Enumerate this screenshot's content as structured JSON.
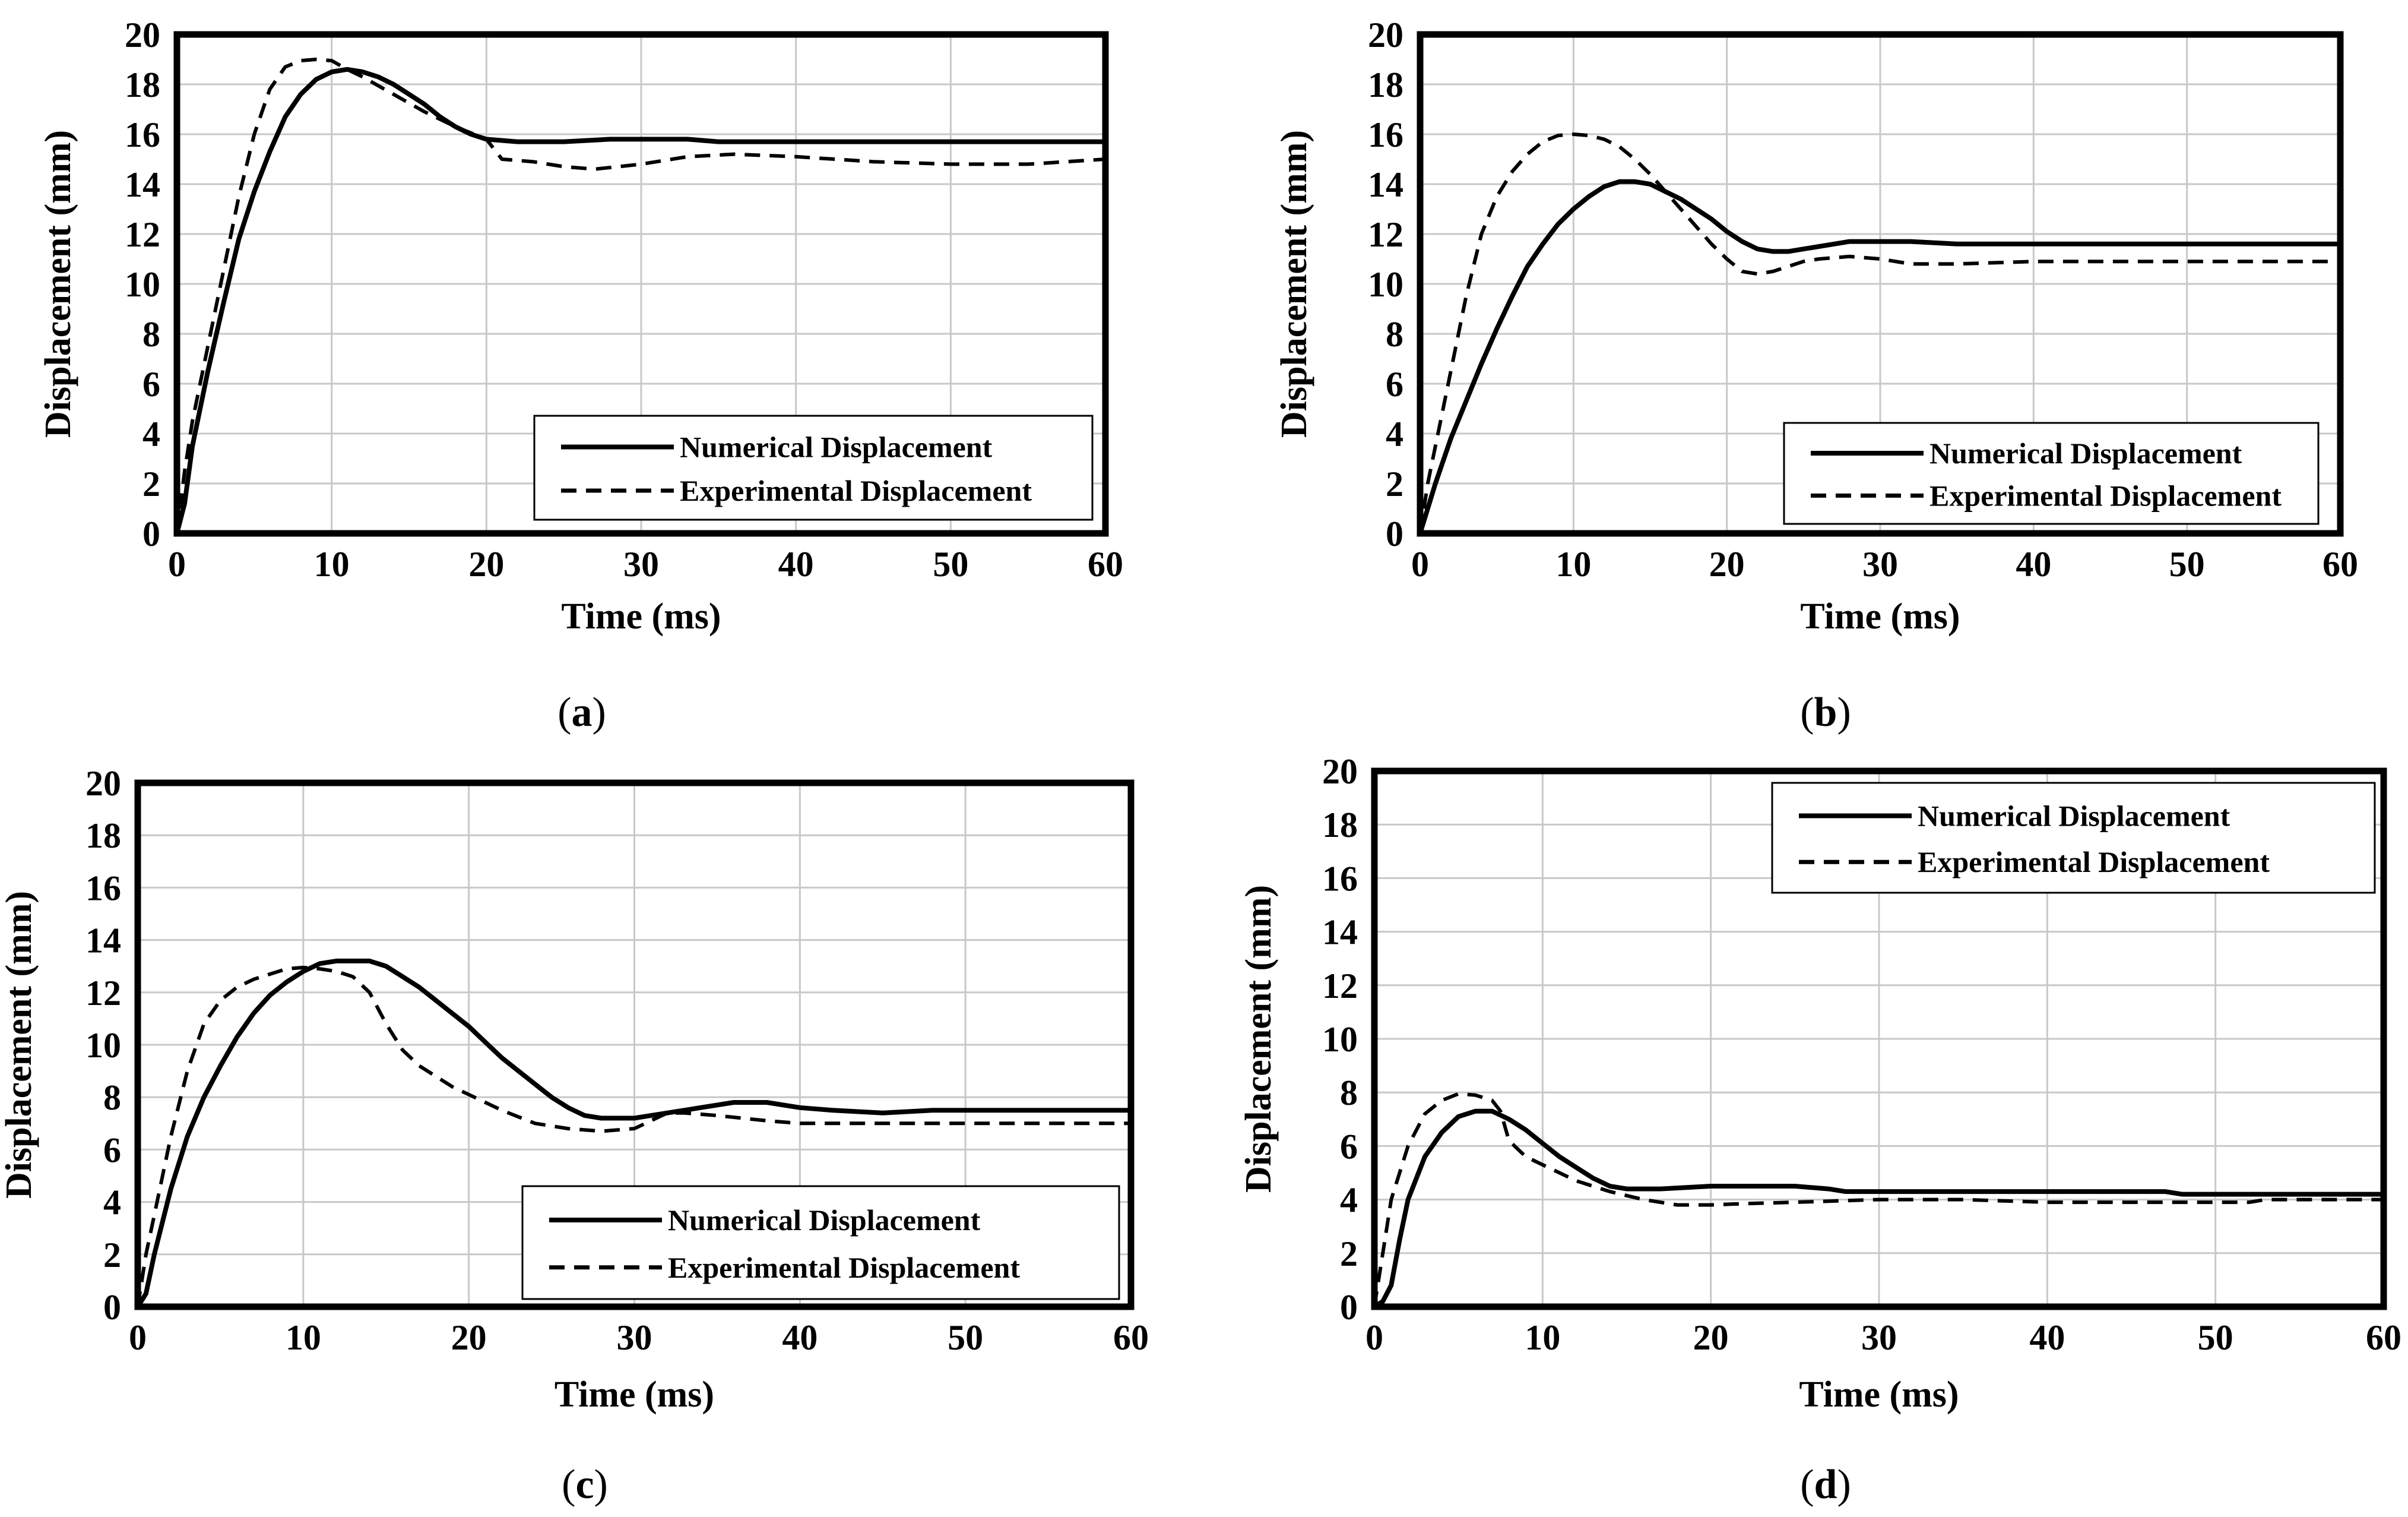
{
  "chart_data": [
    {
      "type": "line",
      "panel": "(a)",
      "caption_letter": "a",
      "xlabel": "Time (ms)",
      "ylabel": "Displacement (mm)",
      "xlim": [
        0,
        60
      ],
      "ylim": [
        0,
        20
      ],
      "xticks": [
        0,
        10,
        20,
        30,
        40,
        50,
        60
      ],
      "yticks": [
        0,
        2,
        4,
        6,
        8,
        10,
        12,
        14,
        16,
        18,
        20
      ],
      "grid": true,
      "legend_position": "bottom-right",
      "series": [
        {
          "name": "Numerical Displacement",
          "style": "solid",
          "x": [
            0,
            0.5,
            1,
            2,
            3,
            4,
            5,
            6,
            7,
            8,
            9,
            10,
            11,
            12,
            13,
            14,
            15,
            16,
            17,
            18,
            19,
            20,
            22,
            25,
            28,
            30,
            33,
            35,
            40,
            45,
            50,
            55,
            60
          ],
          "y": [
            0,
            1.2,
            3.5,
            6.5,
            9.2,
            11.8,
            13.7,
            15.3,
            16.7,
            17.6,
            18.2,
            18.5,
            18.6,
            18.5,
            18.3,
            18,
            17.6,
            17.2,
            16.7,
            16.3,
            16,
            15.8,
            15.7,
            15.7,
            15.8,
            15.8,
            15.8,
            15.7,
            15.7,
            15.7,
            15.7,
            15.7,
            15.7
          ]
        },
        {
          "name": "Experimental Displacement",
          "style": "dashed",
          "x": [
            0,
            0.5,
            1,
            2,
            3,
            4,
            5,
            6,
            7,
            8,
            9,
            10,
            11,
            12,
            14,
            16,
            18,
            20,
            21,
            23,
            25,
            27,
            30,
            33,
            36,
            40,
            45,
            50,
            55,
            60
          ],
          "y": [
            0,
            2.5,
            4.5,
            7.5,
            10.5,
            13.5,
            16,
            17.8,
            18.7,
            18.95,
            19,
            18.95,
            18.6,
            18.3,
            17.6,
            16.9,
            16.3,
            15.8,
            15,
            14.9,
            14.7,
            14.6,
            14.8,
            15.1,
            15.2,
            15.1,
            14.9,
            14.8,
            14.8,
            15
          ]
        }
      ]
    },
    {
      "type": "line",
      "panel": "(b)",
      "caption_letter": "b",
      "xlabel": "Time (ms)",
      "ylabel": "Displacement (mm)",
      "xlim": [
        0,
        60
      ],
      "ylim": [
        0,
        20
      ],
      "xticks": [
        0,
        10,
        20,
        30,
        40,
        50,
        60
      ],
      "yticks": [
        0,
        2,
        4,
        6,
        8,
        10,
        12,
        14,
        16,
        18,
        20
      ],
      "grid": true,
      "legend_position": "bottom-right",
      "series": [
        {
          "name": "Numerical Displacement",
          "style": "solid",
          "x": [
            0,
            1,
            2,
            3,
            4,
            5,
            6,
            7,
            8,
            9,
            10,
            11,
            12,
            13,
            14,
            15,
            16,
            17,
            18,
            19,
            20,
            21,
            22,
            23,
            24,
            25,
            26,
            27,
            28,
            30,
            32,
            35,
            40,
            45,
            50,
            55,
            60
          ],
          "y": [
            0,
            2,
            3.8,
            5.3,
            6.8,
            8.2,
            9.5,
            10.7,
            11.6,
            12.4,
            13,
            13.5,
            13.9,
            14.1,
            14.1,
            14,
            13.7,
            13.4,
            13,
            12.6,
            12.1,
            11.7,
            11.4,
            11.3,
            11.3,
            11.4,
            11.5,
            11.6,
            11.7,
            11.7,
            11.7,
            11.6,
            11.6,
            11.6,
            11.6,
            11.6,
            11.6
          ]
        },
        {
          "name": "Experimental Displacement",
          "style": "dashed",
          "x": [
            0,
            0.5,
            1,
            2,
            3,
            4,
            5,
            6,
            7,
            8,
            9,
            10,
            11,
            12,
            13,
            14,
            15,
            16,
            17,
            18,
            19,
            20,
            21,
            22,
            23,
            24,
            25,
            26,
            28,
            30,
            32,
            35,
            40,
            45,
            50,
            55,
            60
          ],
          "y": [
            0,
            2,
            3.5,
            6.5,
            9.5,
            12,
            13.5,
            14.5,
            15.2,
            15.7,
            15.95,
            16,
            15.95,
            15.8,
            15.5,
            15,
            14.4,
            13.7,
            13,
            12.3,
            11.6,
            11,
            10.5,
            10.4,
            10.5,
            10.7,
            10.9,
            11,
            11.1,
            11,
            10.8,
            10.8,
            10.9,
            10.9,
            10.9,
            10.9,
            10.9
          ]
        }
      ]
    },
    {
      "type": "line",
      "panel": "(c)",
      "caption_letter": "c",
      "xlabel": "Time (ms)",
      "ylabel": "Displacement (mm)",
      "xlim": [
        0,
        60
      ],
      "ylim": [
        0,
        20
      ],
      "xticks": [
        0,
        10,
        20,
        30,
        40,
        50,
        60
      ],
      "yticks": [
        0,
        2,
        4,
        6,
        8,
        10,
        12,
        14,
        16,
        18,
        20
      ],
      "grid": true,
      "legend_position": "bottom-right",
      "series": [
        {
          "name": "Numerical Displacement",
          "style": "solid",
          "x": [
            0,
            0.5,
            1,
            2,
            3,
            4,
            5,
            6,
            7,
            8,
            9,
            10,
            11,
            12,
            13,
            14,
            15,
            16,
            17,
            18,
            19,
            20,
            21,
            22,
            23,
            24,
            25,
            26,
            27,
            28,
            29,
            30,
            31,
            32,
            33,
            34,
            35,
            36,
            37,
            38,
            40,
            42,
            45,
            48,
            50,
            55,
            60
          ],
          "y": [
            0,
            0.5,
            2,
            4.5,
            6.5,
            8,
            9.2,
            10.3,
            11.2,
            11.9,
            12.4,
            12.8,
            13.1,
            13.2,
            13.2,
            13.2,
            13,
            12.6,
            12.2,
            11.7,
            11.2,
            10.7,
            10.1,
            9.5,
            9,
            8.5,
            8,
            7.6,
            7.3,
            7.2,
            7.2,
            7.2,
            7.3,
            7.4,
            7.5,
            7.6,
            7.7,
            7.8,
            7.8,
            7.8,
            7.6,
            7.5,
            7.4,
            7.5,
            7.5,
            7.5,
            7.5
          ]
        },
        {
          "name": "Experimental Displacement",
          "style": "dashed",
          "x": [
            0,
            0.5,
            1,
            2,
            3,
            4,
            5,
            6,
            7,
            8,
            9,
            10,
            11,
            12,
            13,
            14,
            15,
            16,
            17,
            18,
            19,
            20,
            22,
            24,
            26,
            28,
            30,
            31,
            32,
            33,
            35,
            38,
            40,
            45,
            50,
            55,
            60
          ],
          "y": [
            0,
            2,
            3.5,
            6.5,
            9,
            10.8,
            11.7,
            12.2,
            12.5,
            12.7,
            12.9,
            12.95,
            12.9,
            12.8,
            12.6,
            12,
            10.8,
            9.8,
            9.2,
            8.8,
            8.4,
            8.1,
            7.5,
            7,
            6.8,
            6.7,
            6.8,
            7.1,
            7.4,
            7.4,
            7.3,
            7.1,
            7,
            7,
            7,
            7,
            7
          ]
        }
      ]
    },
    {
      "type": "line",
      "panel": "(d)",
      "caption_letter": "d",
      "xlabel": "Time (ms)",
      "ylabel": "Displacement (mm)",
      "xlim": [
        0,
        60
      ],
      "ylim": [
        0,
        20
      ],
      "xticks": [
        0,
        10,
        20,
        30,
        40,
        50,
        60
      ],
      "yticks": [
        0,
        2,
        4,
        6,
        8,
        10,
        12,
        14,
        16,
        18,
        20
      ],
      "grid": true,
      "legend_position": "top-right",
      "series": [
        {
          "name": "Numerical Displacement",
          "style": "solid",
          "x": [
            0,
            0.5,
            1,
            1.5,
            2,
            3,
            4,
            5,
            6,
            7,
            8,
            9,
            10,
            11,
            12,
            13,
            14,
            15,
            17,
            20,
            25,
            27,
            28,
            30,
            35,
            40,
            45,
            47,
            48,
            50,
            55,
            60
          ],
          "y": [
            0,
            0.2,
            0.8,
            2.5,
            4,
            5.6,
            6.5,
            7.1,
            7.3,
            7.3,
            7,
            6.6,
            6.1,
            5.6,
            5.2,
            4.8,
            4.5,
            4.4,
            4.4,
            4.5,
            4.5,
            4.4,
            4.3,
            4.3,
            4.3,
            4.3,
            4.3,
            4.3,
            4.2,
            4.2,
            4.2,
            4.2
          ]
        },
        {
          "name": "Experimental Displacement",
          "style": "dashed",
          "x": [
            0,
            0.5,
            1,
            2,
            3,
            4,
            5,
            6,
            7,
            7.5,
            8,
            9,
            10,
            11,
            12,
            14,
            16,
            18,
            20,
            22,
            25,
            30,
            35,
            40,
            45,
            50,
            52,
            53,
            55,
            60
          ],
          "y": [
            0,
            2,
            4,
            6,
            7.2,
            7.7,
            7.95,
            7.9,
            7.7,
            7.3,
            6.2,
            5.6,
            5.3,
            5,
            4.7,
            4.3,
            4,
            3.8,
            3.8,
            3.85,
            3.9,
            4,
            4,
            3.9,
            3.9,
            3.9,
            3.9,
            4,
            4,
            4
          ]
        }
      ]
    }
  ]
}
